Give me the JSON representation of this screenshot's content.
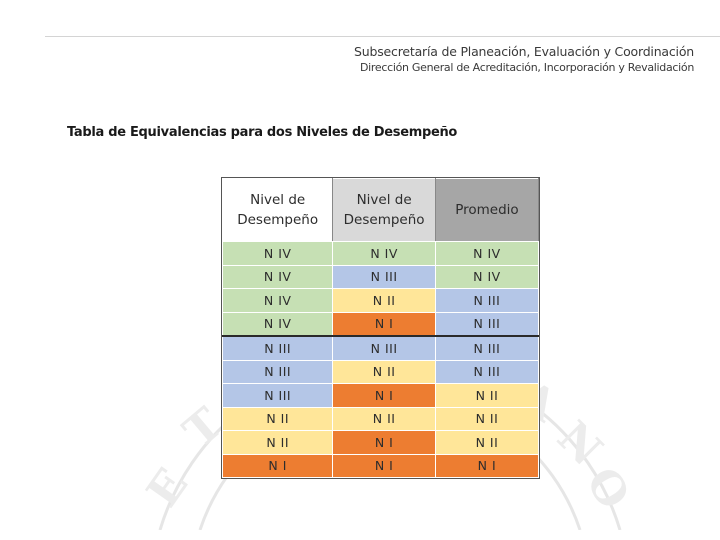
{
  "header": {
    "line1": "Subsecretaría de Planeación, Evaluación y Coordinación",
    "line2": "Dirección General de Acreditación, Incorporación y Revalidación"
  },
  "title": "Tabla de Equivalencias para dos Niveles de Desempeño",
  "colors": {
    "N IV": "#c6e0b4",
    "N III": "#b4c6e7",
    "N II": "#ffe699",
    "N I": "#ed7d31"
  },
  "table": {
    "headers": [
      "Nivel de Desempeño",
      "Nivel de Desempeño",
      "Promedio"
    ],
    "rows": [
      [
        "N IV",
        "N IV",
        "N IV"
      ],
      [
        "N IV",
        "N III",
        "N IV"
      ],
      [
        "N IV",
        "N II",
        "N III"
      ],
      [
        "N IV",
        "N I",
        "N III"
      ],
      [
        "N III",
        "N III",
        "N III"
      ],
      [
        "N III",
        "N II",
        "N III"
      ],
      [
        "N III",
        "N I",
        "N II"
      ],
      [
        "N II",
        "N II",
        "N II"
      ],
      [
        "N II",
        "N I",
        "N II"
      ],
      [
        "N I",
        "N I",
        "N I"
      ]
    ]
  }
}
